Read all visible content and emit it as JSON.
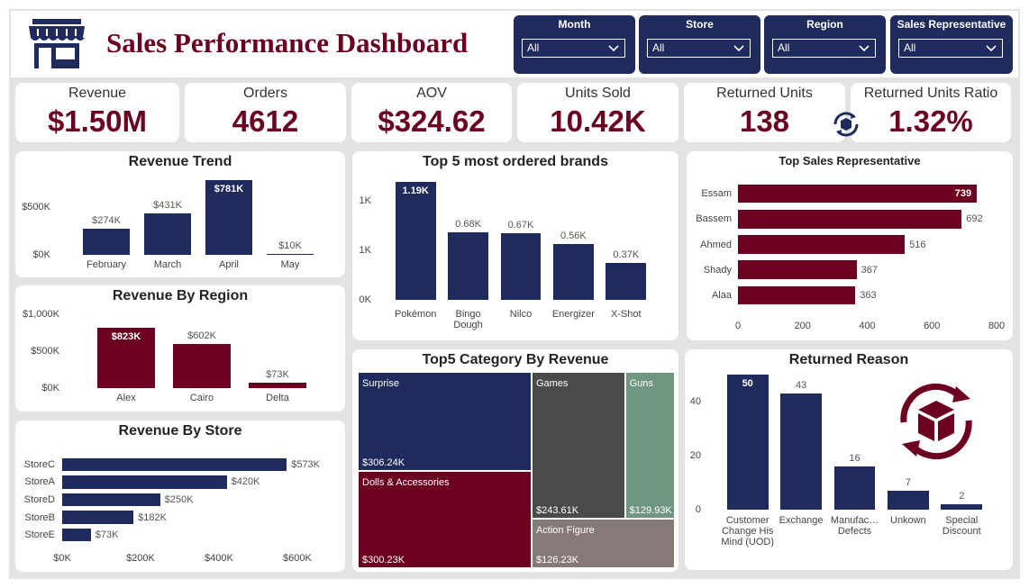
{
  "header": {
    "title": "Sales Performance Dashboard"
  },
  "filters": [
    {
      "label": "Month",
      "value": "All"
    },
    {
      "label": "Store",
      "value": "All"
    },
    {
      "label": "Region",
      "value": "All"
    },
    {
      "label": "Sales Representative",
      "value": "All"
    }
  ],
  "kpis": [
    {
      "label": "Revenue",
      "value": "$1.50M"
    },
    {
      "label": "Orders",
      "value": "4612"
    },
    {
      "label": "AOV",
      "value": "$324.62"
    },
    {
      "label": "Units Sold",
      "value": "10.42K"
    },
    {
      "label": "Returned Units",
      "value": "138"
    },
    {
      "label": "Returned Units Ratio",
      "value": "1.32%"
    }
  ],
  "chart_data": [
    {
      "type": "bar",
      "title": "Revenue Trend",
      "categories": [
        "February",
        "March",
        "April",
        "May"
      ],
      "values": [
        274000,
        431000,
        781000,
        10000
      ],
      "value_labels": [
        "$274K",
        "$431K",
        "$781K",
        "$10K"
      ],
      "color": "#1e2b5c",
      "ylim": [
        0,
        830000
      ],
      "yticks": [
        {
          "value": 0,
          "label": "$0K"
        },
        {
          "value": 500000,
          "label": "$500K"
        }
      ]
    },
    {
      "type": "bar",
      "title": "Top 5 most ordered brands",
      "categories": [
        "Pokémon",
        "Bingo Dough",
        "Nilco",
        "Energizer",
        "X-Shot"
      ],
      "values": [
        1190,
        680,
        670,
        560,
        370
      ],
      "value_labels": [
        "1.19K",
        "0.68K",
        "0.67K",
        "0.56K",
        "0.37K"
      ],
      "color": "#1e2b5c",
      "ylim": [
        0,
        1250
      ],
      "yticks": [
        {
          "value": 0,
          "label": "0K"
        },
        {
          "value": 500,
          "label": "1K"
        },
        {
          "value": 1000,
          "label": "1K"
        }
      ]
    },
    {
      "type": "bar",
      "orientation": "horizontal",
      "title": "Top Sales Representative",
      "categories": [
        "Essam",
        "Bassem",
        "Ahmed",
        "Shady",
        "Alaa"
      ],
      "values": [
        739,
        692,
        516,
        367,
        363
      ],
      "color": "#6b0020",
      "xlim": [
        0,
        800
      ],
      "xticks": [
        0,
        200,
        400,
        600,
        800
      ]
    },
    {
      "type": "bar",
      "title": "Revenue By Region",
      "categories": [
        "Alex",
        "Cairo",
        "Delta"
      ],
      "values": [
        823000,
        602000,
        73000
      ],
      "value_labels": [
        "$823K",
        "$602K",
        "$73K"
      ],
      "color": "#6b0020",
      "ylim": [
        0,
        1000000
      ],
      "yticks": [
        {
          "value": 0,
          "label": "$0K"
        },
        {
          "value": 500000,
          "label": "$500K"
        },
        {
          "value": 1000000,
          "label": "$1,000K"
        }
      ]
    },
    {
      "type": "treemap",
      "title": "Top5 Category By Revenue",
      "categories": [
        "Surprise",
        "Dolls & Accessories",
        "Games",
        "Guns",
        "Action Figure"
      ],
      "values": [
        306240,
        300230,
        243610,
        129930,
        126230
      ],
      "value_labels": [
        "$306.24K",
        "$300.23K",
        "$243.61K",
        "$129.93K",
        "$126.23K"
      ],
      "colors": [
        "#1e2b5c",
        "#6b0020",
        "#4a4a4a",
        "#6e9680",
        "#857a78"
      ]
    },
    {
      "type": "bar",
      "title": "Returned Reason",
      "categories": [
        "Customer Change His Mind (UOD)",
        "Exchange",
        "Manufac… Defects",
        "Unkown",
        "Special Discount"
      ],
      "values": [
        50,
        43,
        16,
        7,
        2
      ],
      "color": "#1e2b5c",
      "ylim": [
        0,
        50
      ],
      "yticks": [
        0,
        20,
        40
      ]
    },
    {
      "type": "bar",
      "orientation": "horizontal",
      "title": "Revenue By Store",
      "categories": [
        "StoreC",
        "StoreA",
        "StoreD",
        "StoreB",
        "StoreE"
      ],
      "values": [
        573000,
        420000,
        250000,
        182000,
        73000
      ],
      "value_labels": [
        "$573K",
        "$420K",
        "$250K",
        "$182K",
        "$73K"
      ],
      "color": "#1e2b5c",
      "xlim": [
        0,
        630000
      ],
      "xticks": [
        {
          "value": 0,
          "label": "$0K"
        },
        {
          "value": 200000,
          "label": "$200K"
        },
        {
          "value": 400000,
          "label": "$400K"
        },
        {
          "value": 600000,
          "label": "$600K"
        }
      ]
    }
  ]
}
